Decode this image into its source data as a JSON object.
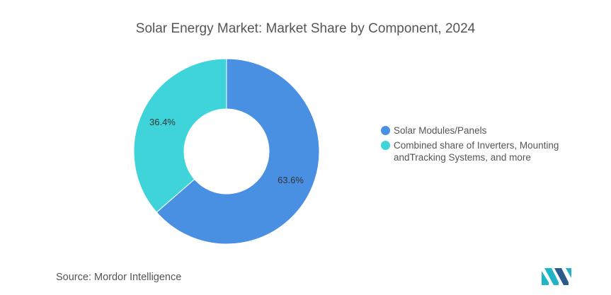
{
  "title": "Solar Energy Market: Market Share by Component, 2024",
  "chart_data": {
    "type": "pie",
    "title": "Solar Energy Market: Market Share by Component, 2024",
    "slices": [
      {
        "label": "Solar Modules/Panels",
        "value": 63.6,
        "display": "63.6%",
        "color": "#4a90e2"
      },
      {
        "label": "Combined share of Inverters, Mounting andTracking Systems, and more",
        "value": 36.4,
        "display": "36.4%",
        "color": "#3fd3da"
      }
    ],
    "donut": true,
    "legend_position": "right"
  },
  "legend": {
    "items": [
      {
        "label": "Solar Modules/Panels",
        "color": "#4a90e2"
      },
      {
        "label": "Combined share of Inverters, Mounting andTracking Systems, and more",
        "color": "#3fd3da"
      }
    ]
  },
  "source": "Source:  Mordor Intelligence",
  "logo": {
    "icon": "mordor-intelligence-logo",
    "color": "#1fb5c4"
  }
}
